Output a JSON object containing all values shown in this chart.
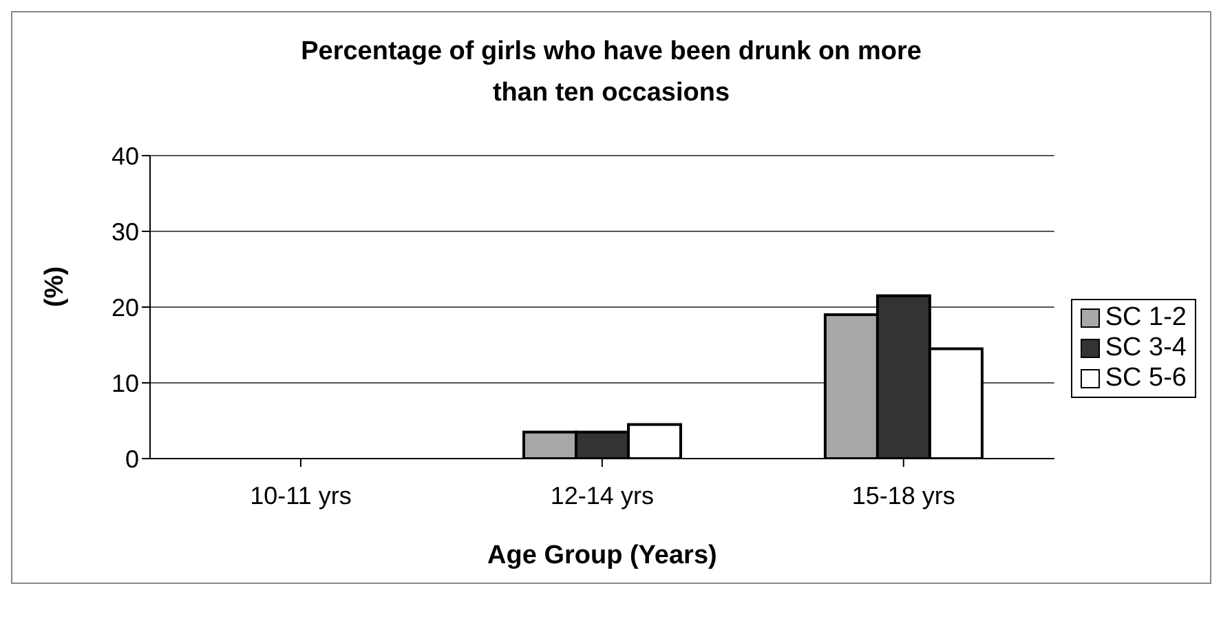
{
  "chart_data": {
    "type": "bar",
    "title": "Percentage of girls who have been drunk on more than ten occasions",
    "xlabel": "Age Group (Years)",
    "ylabel": "(%)",
    "categories": [
      "10-11 yrs",
      "12-14 yrs",
      "15-18 yrs"
    ],
    "series": [
      {
        "name": "SC 1-2",
        "color": "#a8a8a8",
        "values": [
          0,
          3.5,
          19
        ]
      },
      {
        "name": "SC 3-4",
        "color": "#333333",
        "values": [
          0,
          3.5,
          21.5
        ]
      },
      {
        "name": "SC 5-6",
        "color": "#ffffff",
        "values": [
          0,
          4.5,
          14.5
        ]
      }
    ],
    "ylim": [
      0,
      40
    ],
    "yticks": [
      0,
      10,
      20,
      30,
      40
    ],
    "grid": "y",
    "legend": "right"
  }
}
